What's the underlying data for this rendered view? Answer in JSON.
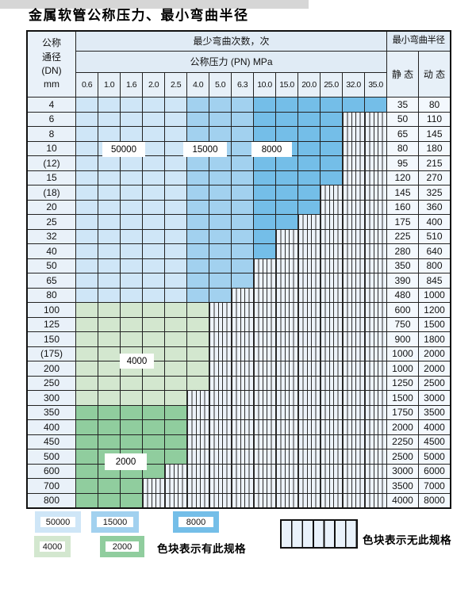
{
  "title": "金属软管公称压力、最小弯曲半径",
  "table": {
    "corner_lines": [
      "公称",
      "通径",
      "(DN)",
      "mm"
    ],
    "bend_cycles_header": "最少弯曲次数，次",
    "pressure_header": "公称压力 (PN) MPa",
    "radius_header": "最小弯曲半径",
    "static_header": "静 态",
    "dynamic_header": "动 态",
    "pressure_columns": [
      "0.6",
      "1.0",
      "1.6",
      "2.0",
      "2.5",
      "4.0",
      "5.0",
      "6.3",
      "10.0",
      "15.0",
      "20.0",
      "25.0",
      "32.0",
      "35.0"
    ],
    "cycle_regions": {
      "blue_light_50000_columns": [
        "0.6",
        "1.0",
        "1.6",
        "2.0",
        "2.5"
      ],
      "blue_medium_15000_columns": [
        "4.0",
        "5.0",
        "6.3"
      ],
      "blue_dark_8000_columns": [
        "10.0",
        "15.0",
        "20.0",
        "25.0",
        "32.0",
        "35.0"
      ]
    },
    "rows": [
      {
        "dn": "4",
        "solid_cols": 14,
        "region": "blue",
        "static": "35",
        "dynamic": "80"
      },
      {
        "dn": "6",
        "solid_cols": 12,
        "region": "blue",
        "static": "50",
        "dynamic": "110"
      },
      {
        "dn": "8",
        "solid_cols": 12,
        "region": "blue",
        "static": "65",
        "dynamic": "145"
      },
      {
        "dn": "10",
        "solid_cols": 12,
        "region": "blue",
        "static": "80",
        "dynamic": "180"
      },
      {
        "dn": "(12)",
        "solid_cols": 12,
        "region": "blue",
        "static": "95",
        "dynamic": "215"
      },
      {
        "dn": "15",
        "solid_cols": 12,
        "region": "blue",
        "static": "120",
        "dynamic": "270"
      },
      {
        "dn": "(18)",
        "solid_cols": 11,
        "region": "blue",
        "static": "145",
        "dynamic": "325"
      },
      {
        "dn": "20",
        "solid_cols": 11,
        "region": "blue",
        "static": "160",
        "dynamic": "360"
      },
      {
        "dn": "25",
        "solid_cols": 10,
        "region": "blue",
        "static": "175",
        "dynamic": "400"
      },
      {
        "dn": "32",
        "solid_cols": 9,
        "region": "blue",
        "static": "225",
        "dynamic": "510"
      },
      {
        "dn": "40",
        "solid_cols": 9,
        "region": "blue",
        "static": "280",
        "dynamic": "640"
      },
      {
        "dn": "50",
        "solid_cols": 8,
        "region": "blue",
        "static": "350",
        "dynamic": "800"
      },
      {
        "dn": "65",
        "solid_cols": 8,
        "region": "blue",
        "static": "390",
        "dynamic": "845"
      },
      {
        "dn": "80",
        "solid_cols": 7,
        "region": "blue",
        "static": "480",
        "dynamic": "1000"
      },
      {
        "dn": "100",
        "solid_cols": 6,
        "region": "green_light",
        "static": "600",
        "dynamic": "1200"
      },
      {
        "dn": "125",
        "solid_cols": 6,
        "region": "green_light",
        "static": "750",
        "dynamic": "1500"
      },
      {
        "dn": "150",
        "solid_cols": 6,
        "region": "green_light",
        "static": "900",
        "dynamic": "1800"
      },
      {
        "dn": "(175)",
        "solid_cols": 6,
        "region": "green_light",
        "static": "1000",
        "dynamic": "2000"
      },
      {
        "dn": "200",
        "solid_cols": 6,
        "region": "green_light",
        "static": "1000",
        "dynamic": "2000"
      },
      {
        "dn": "250",
        "solid_cols": 6,
        "region": "green_light",
        "static": "1250",
        "dynamic": "2500"
      },
      {
        "dn": "300",
        "solid_cols": 5,
        "region": "green_light",
        "static": "1500",
        "dynamic": "3000"
      },
      {
        "dn": "350",
        "solid_cols": 5,
        "region": "green_medium",
        "static": "1750",
        "dynamic": "3500"
      },
      {
        "dn": "400",
        "solid_cols": 5,
        "region": "green_medium",
        "static": "2000",
        "dynamic": "4000"
      },
      {
        "dn": "450",
        "solid_cols": 5,
        "region": "green_medium",
        "static": "2250",
        "dynamic": "4500"
      },
      {
        "dn": "500",
        "solid_cols": 5,
        "region": "green_medium",
        "static": "2500",
        "dynamic": "5000"
      },
      {
        "dn": "600",
        "solid_cols": 4,
        "region": "green_medium",
        "static": "3000",
        "dynamic": "6000"
      },
      {
        "dn": "700",
        "solid_cols": 3,
        "region": "green_medium",
        "static": "3500",
        "dynamic": "7000"
      },
      {
        "dn": "800",
        "solid_cols": 3,
        "region": "green_medium",
        "static": "4000",
        "dynamic": "8000"
      }
    ]
  },
  "overlay_labels": [
    {
      "text": "50000"
    },
    {
      "text": "15000"
    },
    {
      "text": "8000"
    },
    {
      "text": "4000"
    },
    {
      "text": "2000"
    }
  ],
  "legend": {
    "items": [
      {
        "label": "50000",
        "color_key": "blue_light"
      },
      {
        "label": "15000",
        "color_key": "blue_medium"
      },
      {
        "label": "8000",
        "color_key": "blue_dark"
      },
      {
        "label": "4000",
        "color_key": "green_light"
      },
      {
        "label": "2000",
        "color_key": "green_medium"
      }
    ],
    "has_spec_text": "色块表示有此规格",
    "no_spec_text": "色块表示无此规格"
  },
  "colors": {
    "blue_light": "#cfe6f7",
    "blue_medium": "#a2d1ef",
    "blue_dark": "#74bee8",
    "green_light": "#d3e7cf",
    "green_medium": "#90cd9e",
    "striped_bg": "#edf3fa",
    "grid_line": "#222222",
    "header_bg": "#e0ebf5",
    "dn_column_bg": "#e9f1f9",
    "value_column_bg": "#f3f8fd"
  }
}
